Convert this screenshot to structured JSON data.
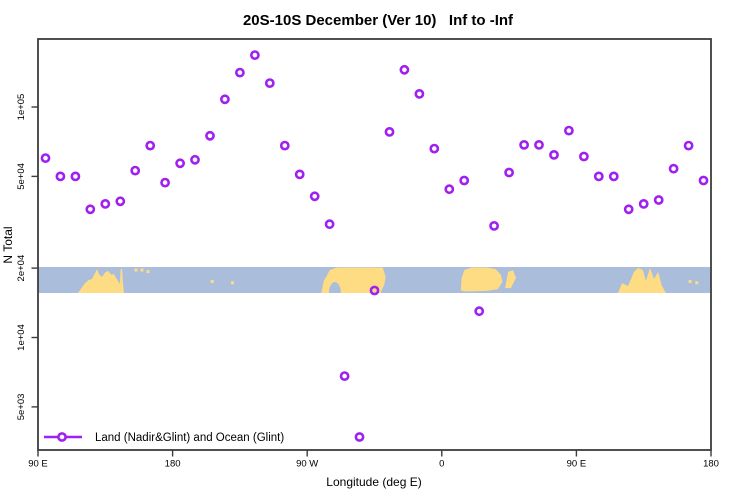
{
  "title": "20S-10S December (Ver 10)   Inf to -Inf",
  "axes": {
    "x_label": "Longitude (deg E)",
    "y_label": "N Total",
    "x_ticks": [
      {
        "label": "90 E",
        "axis_deg": 0
      },
      {
        "label": "180",
        "axis_deg": 90
      },
      {
        "label": "90 W",
        "axis_deg": 180
      },
      {
        "label": "0",
        "axis_deg": 270
      },
      {
        "label": "90 E",
        "axis_deg": 360
      },
      {
        "label": "180",
        "axis_deg": 450
      }
    ],
    "y_ticks": [
      {
        "label": "1e+05",
        "value": 100000
      },
      {
        "label": "5e+04",
        "value": 50000
      },
      {
        "label": "2e+04",
        "value": 20000
      },
      {
        "label": "1e+04",
        "value": 10000
      },
      {
        "label": "5e+03",
        "value": 5000
      }
    ]
  },
  "legend": {
    "label": "Land (Nadir&Glint) and Ocean (Glint)",
    "marker": "open-circle-on-line"
  },
  "colors": {
    "marker": "#A020F0",
    "ocean": "#AABDDB",
    "land": "#FEDC84",
    "axis": "#3c3c3c",
    "text": "#000000",
    "background": "#ffffff"
  },
  "chart_data": {
    "type": "scatter",
    "title": "20S-10S December (Ver 10)   Inf to -Inf",
    "xlabel": "Longitude (deg E)",
    "ylabel": "N Total",
    "y_scale": "log",
    "ylim": [
      3200,
      200000
    ],
    "x_axis_note": "Axis spans 450 degrees of longitude starting at 90E: 90E > 180 > 90W > 0 > 90E > 180; points every 10 deg",
    "x_range_axis_deg": [
      0,
      450
    ],
    "grid": false,
    "legend_position": "bottom-left-inside",
    "series": [
      {
        "name": "Land (Nadir&Glint) and Ocean (Glint)",
        "columns": [
          "axis_deg_from_90E",
          "N"
        ],
        "points": [
          [
            5,
            60000
          ],
          [
            15,
            50000
          ],
          [
            25,
            50000
          ],
          [
            35,
            36000
          ],
          [
            45,
            38000
          ],
          [
            55,
            39000
          ],
          [
            65,
            53000
          ],
          [
            75,
            68000
          ],
          [
            85,
            47000
          ],
          [
            95,
            57000
          ],
          [
            105,
            59000
          ],
          [
            115,
            75000
          ],
          [
            125,
            108000
          ],
          [
            135,
            141000
          ],
          [
            145,
            168000
          ],
          [
            155,
            127000
          ],
          [
            165,
            68000
          ],
          [
            175,
            51000
          ],
          [
            185,
            41000
          ],
          [
            195,
            31000
          ],
          [
            205,
            6800
          ],
          [
            215,
            3700
          ],
          [
            225,
            16000
          ],
          [
            235,
            78000
          ],
          [
            245,
            145000
          ],
          [
            255,
            114000
          ],
          [
            265,
            66000
          ],
          [
            275,
            44000
          ],
          [
            285,
            48000
          ],
          [
            295,
            13000
          ],
          [
            305,
            30500
          ],
          [
            315,
            52000
          ],
          [
            325,
            68500
          ],
          [
            335,
            68500
          ],
          [
            345,
            62000
          ],
          [
            355,
            79000
          ],
          [
            365,
            61000
          ],
          [
            375,
            50000
          ],
          [
            385,
            50000
          ],
          [
            395,
            36000
          ],
          [
            405,
            38000
          ],
          [
            415,
            39500
          ],
          [
            425,
            54000
          ],
          [
            435,
            68000
          ],
          [
            445,
            48000
          ]
        ]
      }
    ],
    "map_band": {
      "description": "world-map strip (20S-10S latitudes) drawn across plot between N=20000 and N=15500",
      "top_value": 20000,
      "bottom_value": 15500,
      "land_polygons": [
        {
          "name": "australia",
          "pts": [
            [
              26.7,
              1
            ],
            [
              31.4,
              0.62
            ],
            [
              34,
              0.5
            ],
            [
              36.1,
              0.46
            ],
            [
              39.5,
              0.08
            ],
            [
              41,
              0.3
            ],
            [
              42.8,
              0.38
            ],
            [
              45,
              0.2
            ],
            [
              46.8,
              0.15
            ],
            [
              49,
              0.3
            ],
            [
              50.8,
              0.27
            ],
            [
              52.5,
              0.45
            ],
            [
              54.8,
              0.65
            ],
            [
              55.2,
              0.08
            ],
            [
              56.2,
              0.08
            ],
            [
              56.7,
              0.55
            ],
            [
              57.5,
              1
            ]
          ]
        },
        {
          "name": "south-america",
          "pts": [
            [
              189.5,
              1
            ],
            [
              191,
              0.54
            ],
            [
              193,
              0.35
            ],
            [
              195,
              0.12
            ],
            [
              200,
              0.02
            ],
            [
              230.5,
              0.02
            ],
            [
              232.5,
              0.38
            ],
            [
              231.5,
              0.69
            ],
            [
              229,
              1
            ]
          ]
        },
        {
          "name": "africa",
          "pts": [
            [
              282.8,
              0.9
            ],
            [
              283.2,
              0.45
            ],
            [
              285,
              0.12
            ],
            [
              290,
              0.02
            ],
            [
              300,
              0.02
            ],
            [
              306,
              0.08
            ],
            [
              309.5,
              0.3
            ],
            [
              310.5,
              0.58
            ],
            [
              307.5,
              0.85
            ],
            [
              300,
              0.92
            ],
            [
              290,
              0.94
            ],
            [
              285,
              0.94
            ]
          ]
        },
        {
          "name": "madagascar",
          "pts": [
            [
              312.3,
              0.81
            ],
            [
              314.3,
              0.19
            ],
            [
              317.6,
              0.12
            ],
            [
              319.6,
              0.42
            ],
            [
              316.2,
              0.81
            ]
          ]
        },
        {
          "name": "australia-repeat",
          "pts": [
            [
              387.8,
              1
            ],
            [
              390.5,
              0.62
            ],
            [
              394.5,
              0.73
            ],
            [
              398.5,
              0.19
            ],
            [
              401.2,
              0.04
            ],
            [
              404.5,
              0.12
            ],
            [
              406.5,
              0.54
            ],
            [
              409.2,
              0.04
            ],
            [
              411.9,
              0.46
            ],
            [
              414.6,
              0.19
            ],
            [
              417.2,
              0.73
            ],
            [
              419.9,
              1
            ]
          ]
        }
      ],
      "islands": [
        [
          65.5,
          0.06
        ],
        [
          69.5,
          0.06
        ],
        [
          73.5,
          0.12
        ],
        [
          116.5,
          0.5
        ],
        [
          130,
          0.55
        ],
        [
          436,
          0.5
        ],
        [
          440.5,
          0.55
        ]
      ],
      "ocean_notch": [
        198.5,
        1.0
      ]
    }
  }
}
